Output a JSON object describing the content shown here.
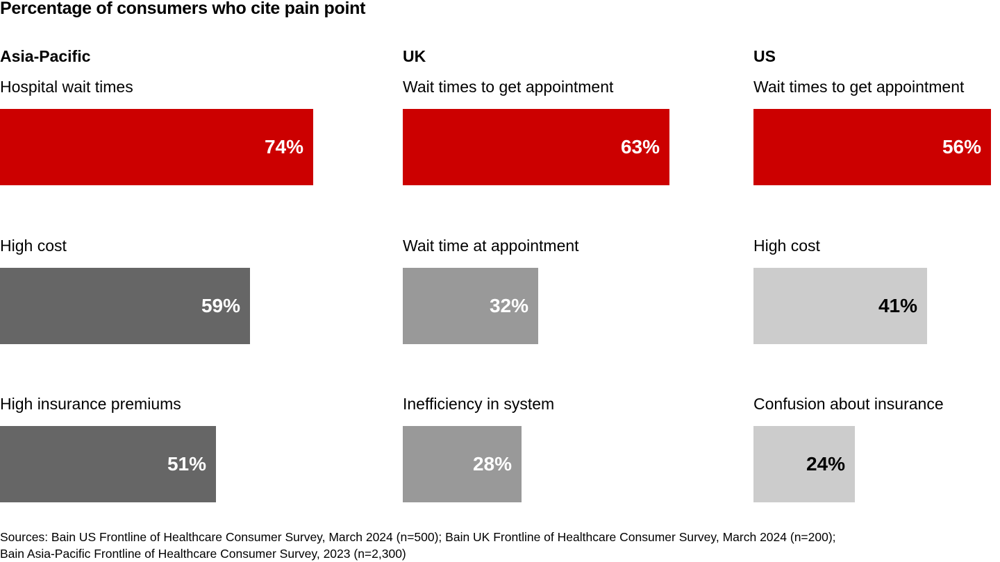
{
  "title": "Percentage of consumers who cite pain point",
  "chart_data": [
    {
      "type": "bar",
      "title": "Asia-Pacific",
      "categories": [
        "Hospital wait times",
        "High cost",
        "High insurance premiums"
      ],
      "values": [
        74,
        59,
        51
      ],
      "value_labels": [
        "74%",
        "59%",
        "51%"
      ],
      "colors": [
        "#cc0000",
        "#666666",
        "#666666"
      ],
      "label_colors": [
        "#ffffff",
        "#ffffff",
        "#ffffff"
      ],
      "xlim": [
        0,
        100
      ]
    },
    {
      "type": "bar",
      "title": "UK",
      "categories": [
        "Wait times to get appointment",
        "Wait time at appointment",
        "Inefficiency in system"
      ],
      "values": [
        63,
        32,
        28
      ],
      "value_labels": [
        "63%",
        "32%",
        "28%"
      ],
      "colors": [
        "#cc0000",
        "#999999",
        "#999999"
      ],
      "label_colors": [
        "#ffffff",
        "#ffffff",
        "#ffffff"
      ],
      "xlim": [
        0,
        100
      ]
    },
    {
      "type": "bar",
      "title": "US",
      "categories": [
        "Wait times to get appointment",
        "High cost",
        "Confusion about insurance"
      ],
      "values": [
        56,
        41,
        24
      ],
      "value_labels": [
        "56%",
        "41%",
        "24%"
      ],
      "colors": [
        "#cc0000",
        "#cccccc",
        "#cccccc"
      ],
      "label_colors": [
        "#ffffff",
        "#000000",
        "#000000"
      ],
      "xlim": [
        0,
        100
      ]
    }
  ],
  "source": {
    "line1": "Sources: Bain US Frontline of Healthcare Consumer Survey, March 2024 (n=500); Bain UK Frontline of Healthcare Consumer Survey, March 2024 (n=200);",
    "line2": "Bain Asia-Pacific Frontline of Healthcare Consumer Survey, 2023 (n=2,300)"
  }
}
